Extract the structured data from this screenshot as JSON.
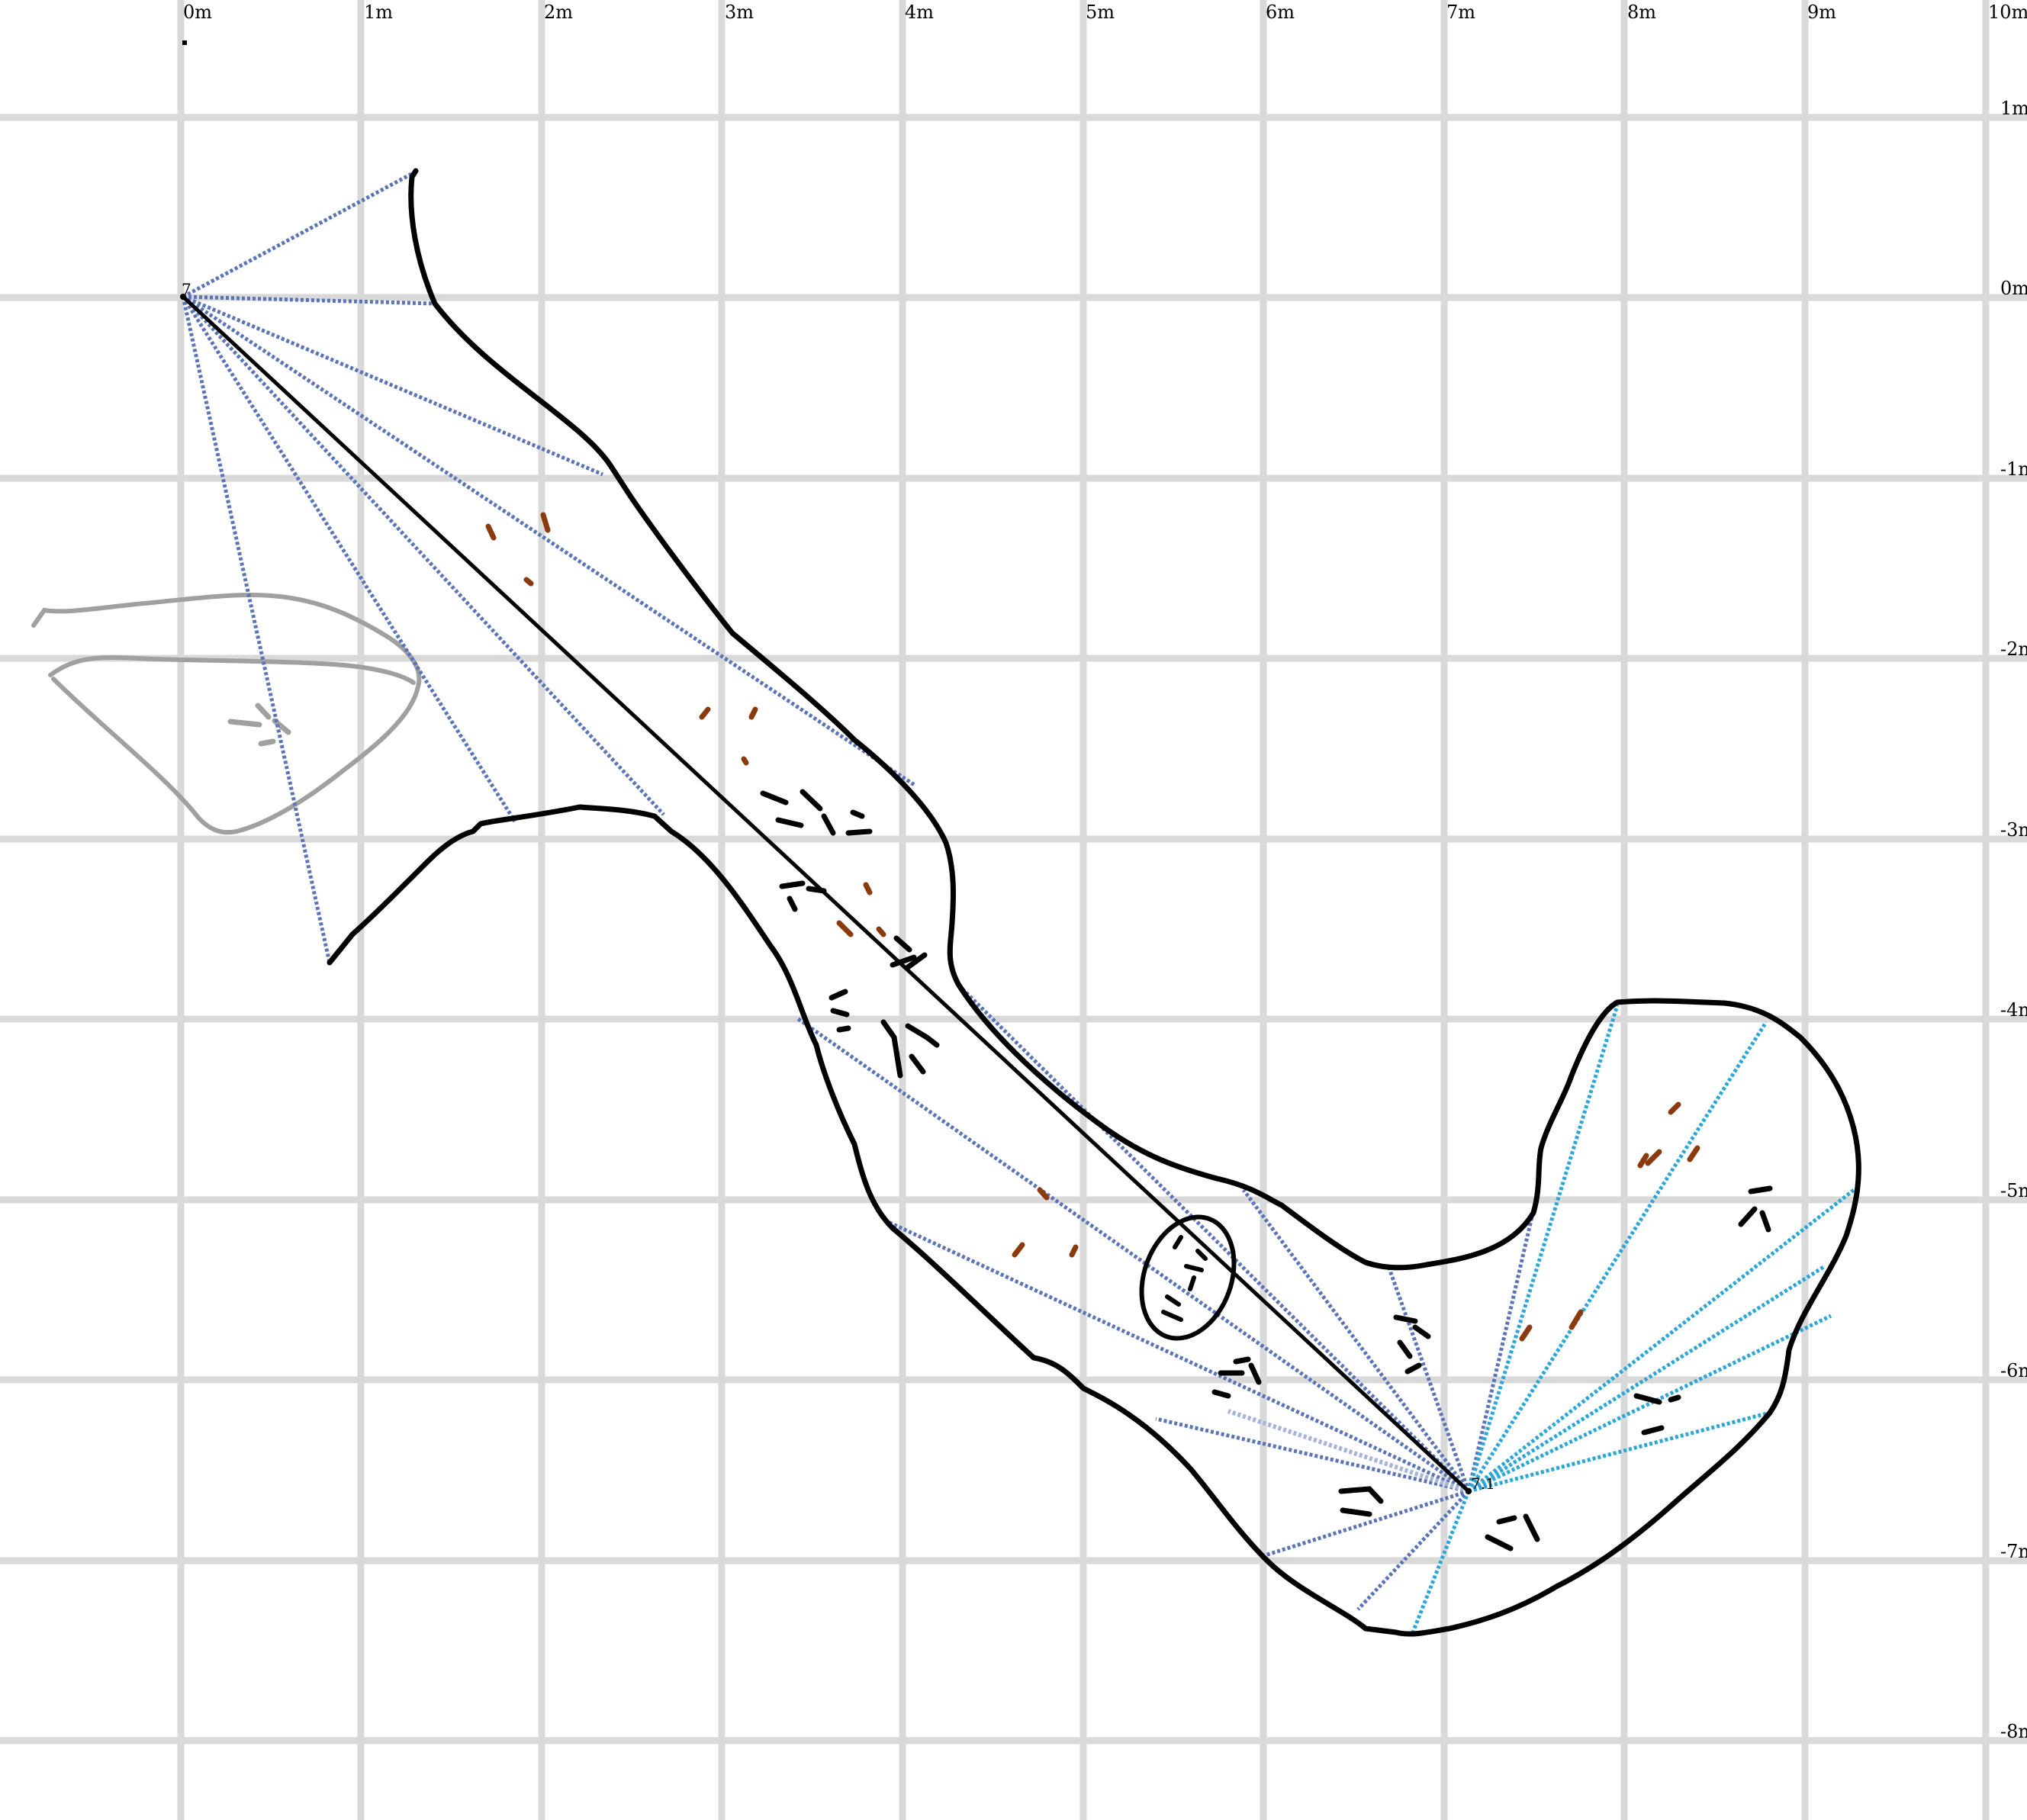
{
  "map": {
    "x_labels": [
      "0m",
      "1m",
      "2m",
      "3m",
      "4m",
      "5m",
      "6m",
      "7m",
      "8m",
      "9m",
      "10m"
    ],
    "y_labels": [
      "1m",
      "0m",
      "-1m",
      "-2m",
      "-3m",
      "-4m",
      "-5m",
      "-6m",
      "-7m",
      "-8m"
    ],
    "stations": [
      {
        "id": "station-7",
        "label": "7"
      },
      {
        "id": "station-7-1",
        "label": "7.1"
      }
    ],
    "colors": {
      "grid": "#d9d9d9",
      "wall": "#000000",
      "old_passage": "#a0a0a0",
      "splay_station_7": "#5b74b8",
      "splay_station_7_1": "#2aa7d8",
      "mud_symbol": "#8b3a0e",
      "symbols": "#000000"
    },
    "icons": [
      "rock-rubble-symbol",
      "mud-symbol",
      "hs-symbol"
    ]
  }
}
